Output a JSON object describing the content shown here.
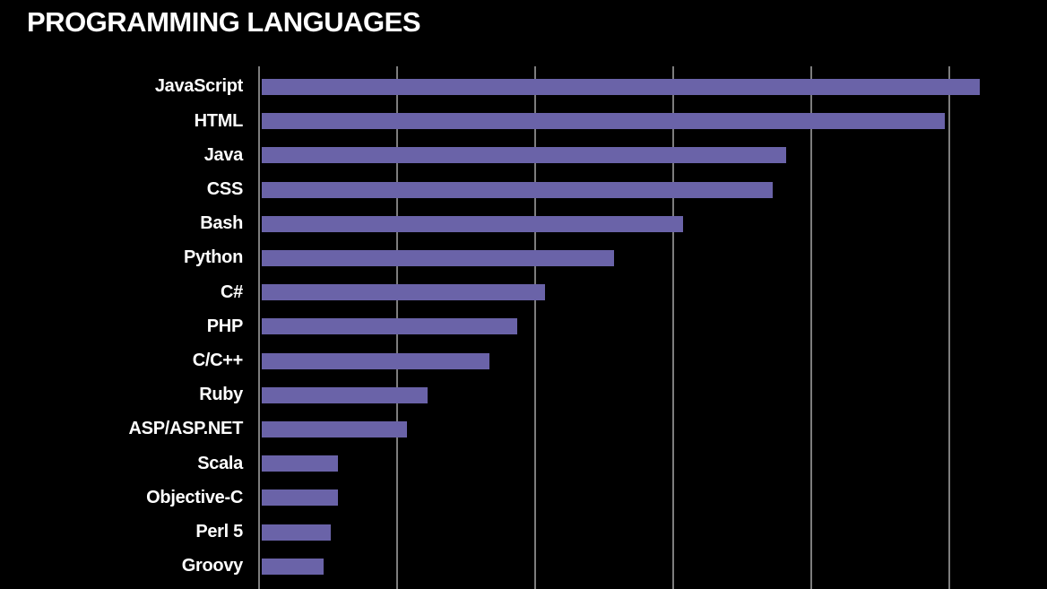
{
  "title": "PROGRAMMING LANGUAGES",
  "colors": {
    "background": "#000000",
    "bar": "#6a63a8",
    "gridline": "#7d7d7d",
    "text": "#ffffff"
  },
  "chart_data": {
    "type": "bar",
    "orientation": "horizontal",
    "title": "PROGRAMMING LANGUAGES",
    "categories": [
      "JavaScript",
      "HTML",
      "Java",
      "CSS",
      "Bash",
      "Python",
      "C#",
      "PHP",
      "C/C++",
      "Ruby",
      "ASP/ASP.NET",
      "Scala",
      "Objective-C",
      "Perl 5",
      "Groovy"
    ],
    "values": [
      52,
      49.5,
      38,
      37,
      30.5,
      25.5,
      20.5,
      18.5,
      16.5,
      12,
      10.5,
      5.5,
      5.5,
      5,
      4.5
    ],
    "xlabel": "",
    "ylabel": "",
    "xlim": [
      0,
      57
    ],
    "x_gridlines": [
      0,
      10,
      20,
      30,
      40,
      50
    ],
    "x_tick_labels_visible": false,
    "grid": "vertical",
    "legend_position": "none"
  }
}
